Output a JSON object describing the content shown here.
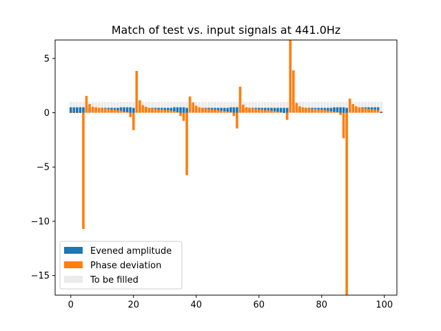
{
  "chart_data": {
    "type": "bar",
    "title": "Match of test vs. input signals at 441.0Hz",
    "xlabel": "",
    "ylabel": "",
    "xlim": [
      -5.0,
      104.0
    ],
    "ylim": [
      -16.8,
      6.7
    ],
    "x_ticks": [
      0,
      20,
      40,
      60,
      80,
      100
    ],
    "y_ticks": [
      -15,
      -10,
      -5,
      0,
      5
    ],
    "grid": false,
    "legend_position": "lower-left",
    "colors": {
      "amplitude": "#1f77b4",
      "phase": "#ff7f0e",
      "fill": "#ebebeb"
    },
    "series": [
      {
        "name": "Evened amplitude",
        "type": "bar",
        "values": [
          0.5,
          0.5,
          0.5,
          0.5,
          0.5,
          0.5,
          0.45,
          0.45,
          0.45,
          0.45,
          0.45,
          0.45,
          0.45,
          0.45,
          0.45,
          0.45,
          0.5,
          0.5,
          0.5,
          0.5,
          0.45,
          0.45,
          0.45,
          0.45,
          0.45,
          0.45,
          0.45,
          0.45,
          0.45,
          0.45,
          0.45,
          0.45,
          0.45,
          0.5,
          0.5,
          0.5,
          0.5,
          0.45,
          0.45,
          0.45,
          0.45,
          0.45,
          0.45,
          0.45,
          0.45,
          0.45,
          0.45,
          0.45,
          0.45,
          0.45,
          0.45,
          0.5,
          0.5,
          0.5,
          0.45,
          0.45,
          0.45,
          0.45,
          0.45,
          0.45,
          0.45,
          0.45,
          0.45,
          0.45,
          0.45,
          0.45,
          0.45,
          0.45,
          0.45,
          0.45,
          0.45,
          0.45,
          0.45,
          0.45,
          0.45,
          0.45,
          0.45,
          0.45,
          0.45,
          0.45,
          0.45,
          0.45,
          0.45,
          0.45,
          0.5,
          0.5,
          0.5,
          0.5,
          0.45,
          0.45,
          0.45,
          0.45,
          0.45,
          0.5,
          0.5,
          0.5,
          0.5,
          0.5,
          0.5,
          0.1
        ]
      },
      {
        "name": "Phase deviation",
        "type": "bar",
        "values": [
          0,
          0,
          0,
          0,
          -10.7,
          1.55,
          0.8,
          0.55,
          0.5,
          0.45,
          0.4,
          0.4,
          0.35,
          0.3,
          0.3,
          0.25,
          0.2,
          0.1,
          0.05,
          -0.4,
          -1.6,
          3.85,
          1.15,
          0.7,
          0.55,
          0.45,
          0.4,
          0.35,
          0.3,
          0.3,
          0.25,
          0.25,
          0.2,
          0.15,
          0.05,
          -0.3,
          -0.75,
          -5.75,
          1.5,
          0.95,
          0.65,
          0.5,
          0.45,
          0.4,
          0.35,
          0.3,
          0.3,
          0.25,
          0.2,
          0.15,
          0.1,
          0.05,
          -0.3,
          -1.45,
          2.4,
          0.75,
          0.5,
          0.45,
          0.4,
          0.35,
          0.3,
          0.3,
          0.25,
          0.25,
          0.2,
          0.15,
          0.1,
          0.05,
          0,
          -0.65,
          6.7,
          3.9,
          0.9,
          0.6,
          0.5,
          0.45,
          0.4,
          0.35,
          0.35,
          0.3,
          0.3,
          0.25,
          0.2,
          0.15,
          0.1,
          0.05,
          -0.2,
          -2.35,
          -16.8,
          1.3,
          0.8,
          0.6,
          0.5,
          0.45,
          0.4,
          0.35,
          0.3,
          0.3,
          0.25,
          0
        ]
      },
      {
        "name": "To be filled",
        "type": "bar",
        "values": [
          1,
          1,
          1,
          1,
          1,
          1,
          1,
          1,
          1,
          1,
          1,
          1,
          1,
          1,
          1,
          1,
          1,
          1,
          1,
          1,
          1,
          1,
          1,
          1,
          1,
          1,
          1,
          1,
          1,
          1,
          1,
          1,
          1,
          1,
          1,
          1,
          1,
          1,
          1,
          1,
          1,
          1,
          1,
          1,
          1,
          1,
          1,
          1,
          1,
          1,
          1,
          1,
          1,
          1,
          1,
          1,
          1,
          1,
          1,
          1,
          1,
          1,
          1,
          1,
          1,
          1,
          1,
          1,
          1,
          1,
          1,
          1,
          1,
          1,
          1,
          1,
          1,
          1,
          1,
          1,
          1,
          1,
          1,
          1,
          1,
          1,
          1,
          1,
          1,
          1,
          1,
          1,
          1,
          1,
          1,
          1,
          1,
          1,
          1,
          1
        ]
      }
    ]
  }
}
